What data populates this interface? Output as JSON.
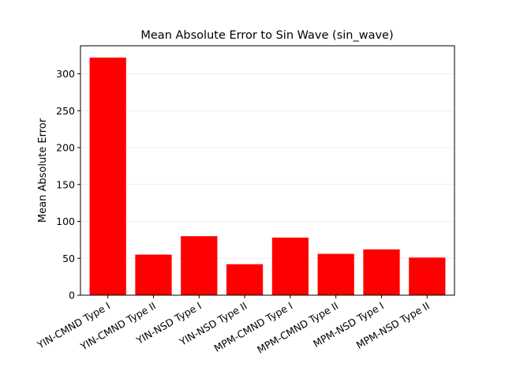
{
  "chart_data": {
    "type": "bar",
    "title": "Mean Absolute Error to Sin Wave (sin_wave)",
    "xlabel": "",
    "ylabel": "Mean Absolute Error",
    "categories": [
      "YIN-CMND Type I",
      "YIN-CMND Type II",
      "YIN-NSD Type I",
      "YIN-NSD Type II",
      "MPM-CMND Type I",
      "MPM-CMND Type II",
      "MPM-NSD Type I",
      "MPM-NSD Type II"
    ],
    "values": [
      322,
      55,
      80,
      42,
      78,
      56,
      62,
      51
    ],
    "ylim": [
      0,
      338
    ],
    "yticks": [
      0,
      50,
      100,
      150,
      200,
      250,
      300
    ],
    "grid": true,
    "bar_color": "#ff0000",
    "grid_color": "#e8e8e8"
  }
}
